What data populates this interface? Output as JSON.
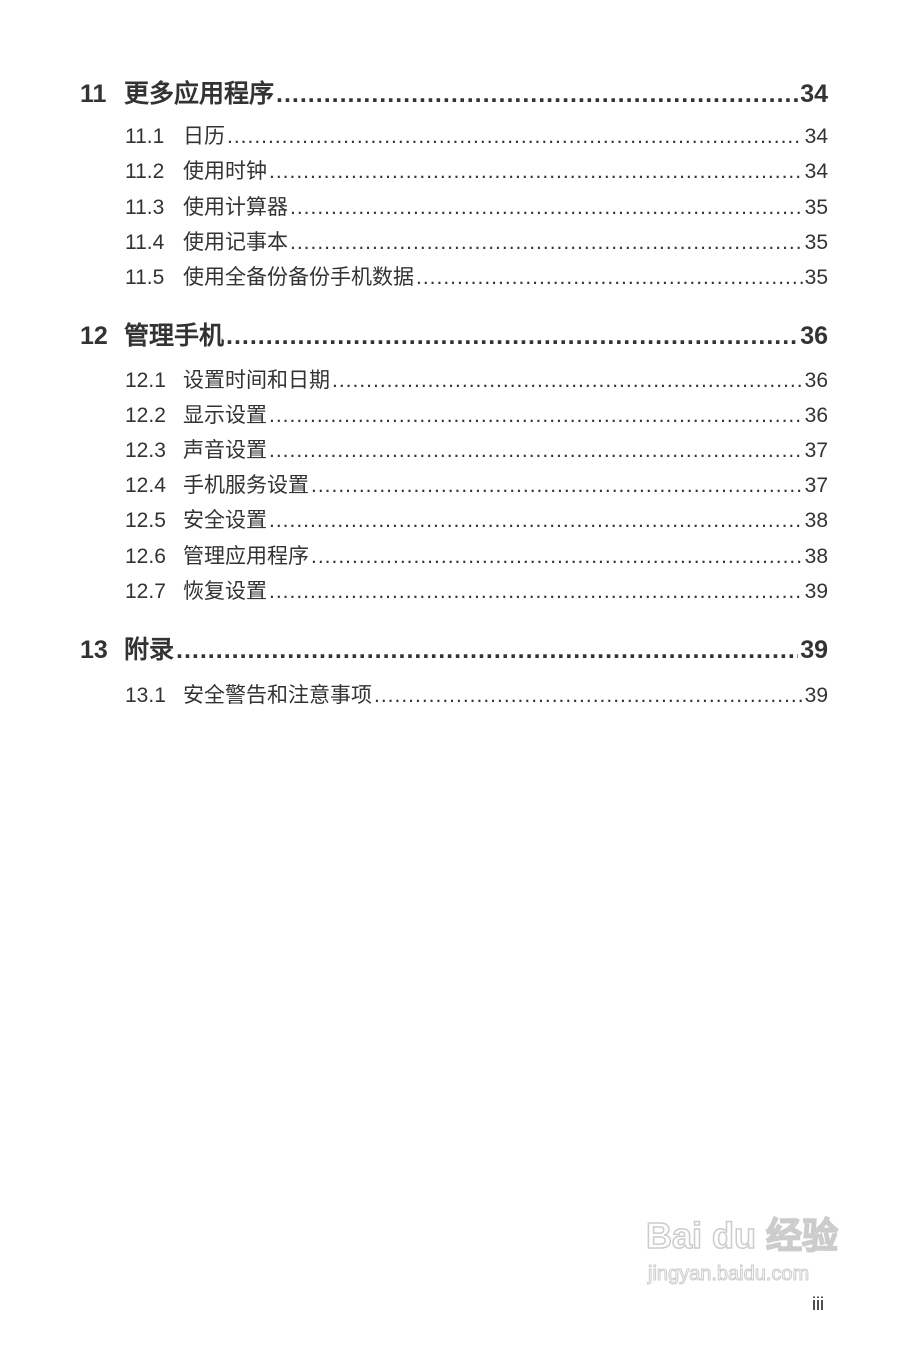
{
  "toc": [
    {
      "num": "11",
      "title": "更多应用程序",
      "page": "34",
      "items": [
        {
          "num": "11.1",
          "title": "日历",
          "page": "34"
        },
        {
          "num": "11.2",
          "title": "使用时钟",
          "page": "34"
        },
        {
          "num": "11.3",
          "title": "使用计算器",
          "page": "35"
        },
        {
          "num": "11.4",
          "title": "使用记事本",
          "page": "35"
        },
        {
          "num": "11.5",
          "title": "使用全备份备份手机数据",
          "page": "35"
        }
      ]
    },
    {
      "num": "12",
      "title": "管理手机",
      "page": "36",
      "items": [
        {
          "num": "12.1",
          "title": "设置时间和日期",
          "page": "36"
        },
        {
          "num": "12.2",
          "title": "显示设置",
          "page": "36"
        },
        {
          "num": "12.3",
          "title": "声音设置",
          "page": "37"
        },
        {
          "num": "12.4",
          "title": "手机服务设置",
          "page": "37"
        },
        {
          "num": "12.5",
          "title": "安全设置",
          "page": "38"
        },
        {
          "num": "12.6",
          "title": "管理应用程序",
          "page": "38"
        },
        {
          "num": "12.7",
          "title": "恢复设置",
          "page": "39"
        }
      ]
    },
    {
      "num": "13",
      "title": "附录",
      "page": "39",
      "items": [
        {
          "num": "13.1",
          "title": "安全警告和注意事项",
          "page": "39"
        }
      ]
    }
  ],
  "page_number": "iii",
  "watermark": {
    "logo": "Bai du 经验",
    "url": "jingyan.baidu.com"
  }
}
